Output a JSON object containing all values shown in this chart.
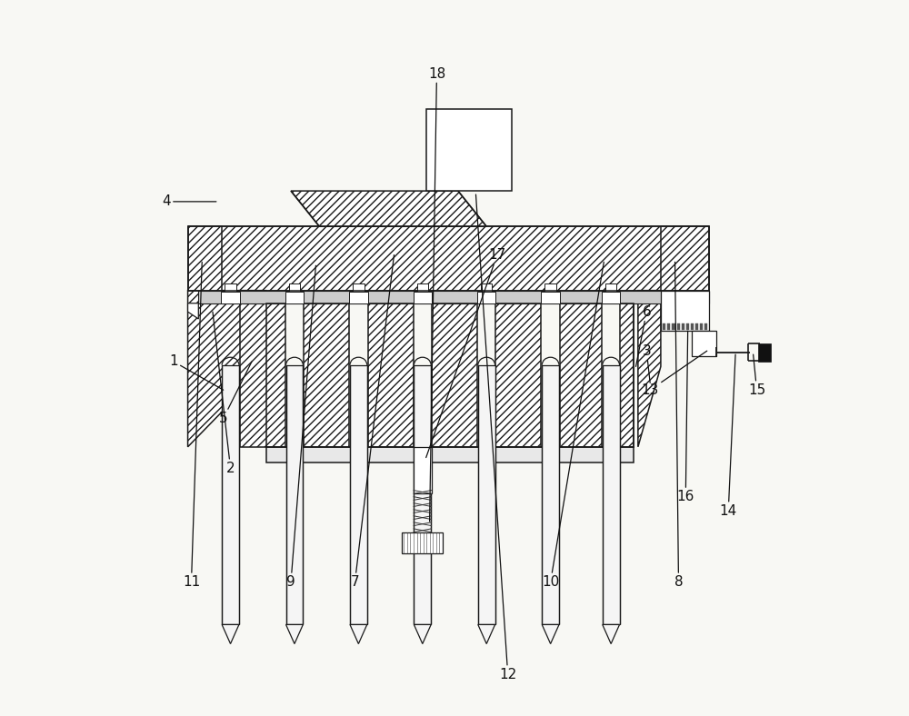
{
  "fig_width": 10.0,
  "fig_height": 7.88,
  "bg_color": "#f8f8f4",
  "lc": "#1a1a1a",
  "lw": 1.1,
  "labels": {
    "1": [
      0.105,
      0.495,
      0.175,
      0.455
    ],
    "2": [
      0.185,
      0.345,
      0.16,
      0.565
    ],
    "3": [
      0.77,
      0.51,
      0.775,
      0.465
    ],
    "4": [
      0.095,
      0.72,
      0.165,
      0.72
    ],
    "5": [
      0.175,
      0.415,
      0.215,
      0.495
    ],
    "6": [
      0.77,
      0.565,
      0.755,
      0.488
    ],
    "7": [
      0.36,
      0.185,
      0.415,
      0.645
    ],
    "8": [
      0.815,
      0.185,
      0.81,
      0.635
    ],
    "9": [
      0.27,
      0.185,
      0.305,
      0.63
    ],
    "10": [
      0.635,
      0.185,
      0.71,
      0.635
    ],
    "11": [
      0.13,
      0.185,
      0.145,
      0.635
    ],
    "12": [
      0.575,
      0.055,
      0.53,
      0.73
    ],
    "13": [
      0.775,
      0.455,
      0.855,
      0.51
    ],
    "14": [
      0.885,
      0.285,
      0.895,
      0.505
    ],
    "15": [
      0.925,
      0.455,
      0.92,
      0.505
    ],
    "16": [
      0.825,
      0.305,
      0.828,
      0.538
    ],
    "17": [
      0.56,
      0.645,
      0.46,
      0.36
    ],
    "18": [
      0.475,
      0.9,
      0.465,
      0.27
    ]
  }
}
